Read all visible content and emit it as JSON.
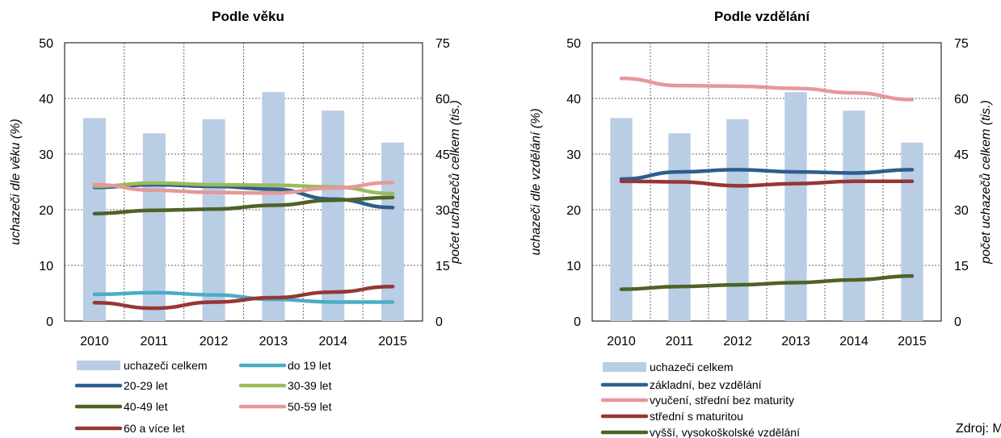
{
  "source": "Zdroj: MPSV",
  "chart_data": [
    {
      "type": "bar+line",
      "title": "Podle věku",
      "ylabel": "uchazeči dle věku (%)",
      "y2label": "počet uchazečů celkem (tis.)",
      "ylim": [
        0,
        50
      ],
      "yticks": [
        0,
        10,
        20,
        30,
        40,
        50
      ],
      "y2lim": [
        0,
        75
      ],
      "y2ticks": [
        0,
        15,
        30,
        45,
        60,
        75
      ],
      "grid": true,
      "legend_position": "bottom",
      "categories": [
        "2010",
        "2011",
        "2012",
        "2013",
        "2014",
        "2015"
      ],
      "bars": {
        "name": "uchazeči celkem",
        "color": "#b9cde5",
        "axis": "right",
        "values": [
          54.7,
          50.6,
          54.4,
          61.7,
          56.7,
          48.1
        ]
      },
      "series": [
        {
          "name": "do 19 let",
          "color": "#4bacc6",
          "values": [
            4.8,
            5.1,
            4.7,
            3.9,
            3.4,
            3.4
          ]
        },
        {
          "name": "20-29 let",
          "color": "#2e5e8e",
          "values": [
            24.0,
            24.5,
            24.2,
            23.7,
            21.9,
            20.4
          ]
        },
        {
          "name": "30-39 let",
          "color": "#9bbb59",
          "values": [
            24.2,
            24.8,
            24.5,
            24.4,
            24.1,
            22.9
          ]
        },
        {
          "name": "40-49 let",
          "color": "#4f6228",
          "values": [
            19.3,
            19.9,
            20.1,
            20.8,
            21.7,
            22.2
          ]
        },
        {
          "name": "50-59 let",
          "color": "#e6989a",
          "values": [
            24.5,
            23.5,
            23.1,
            23.0,
            23.9,
            24.9
          ]
        },
        {
          "name": "60 a více let",
          "color": "#953735",
          "values": [
            3.3,
            2.3,
            3.4,
            4.2,
            5.2,
            6.2
          ]
        }
      ]
    },
    {
      "type": "bar+line",
      "title": "Podle vzdělání",
      "ylabel": "uchazeči dle vzdělání (%)",
      "y2label": "počet uchazečů celkem (tis.)",
      "ylim": [
        0,
        50
      ],
      "yticks": [
        0,
        10,
        20,
        30,
        40,
        50
      ],
      "y2lim": [
        0,
        75
      ],
      "y2ticks": [
        0,
        15,
        30,
        45,
        60,
        75
      ],
      "grid": true,
      "legend_position": "bottom",
      "categories": [
        "2010",
        "2011",
        "2012",
        "2013",
        "2014",
        "2015"
      ],
      "bars": {
        "name": "uchazeči celkem",
        "color": "#b9cde5",
        "axis": "right",
        "values": [
          54.7,
          50.6,
          54.4,
          61.7,
          56.7,
          48.1
        ]
      },
      "series": [
        {
          "name": "základní, bez vzdělání",
          "color": "#2e5e8e",
          "values": [
            25.5,
            26.8,
            27.2,
            26.8,
            26.6,
            27.2
          ]
        },
        {
          "name": "vyučení, střední bez maturity",
          "color": "#e6989a",
          "values": [
            43.6,
            42.3,
            42.2,
            41.8,
            41.0,
            39.8
          ]
        },
        {
          "name": "střední s maturitou",
          "color": "#953735",
          "values": [
            25.1,
            25.0,
            24.3,
            24.7,
            25.1,
            25.1
          ]
        },
        {
          "name": "vyšší, vysokoškolské vzdělání",
          "color": "#4f6228",
          "values": [
            5.7,
            6.2,
            6.5,
            6.9,
            7.4,
            8.1
          ]
        }
      ]
    }
  ]
}
